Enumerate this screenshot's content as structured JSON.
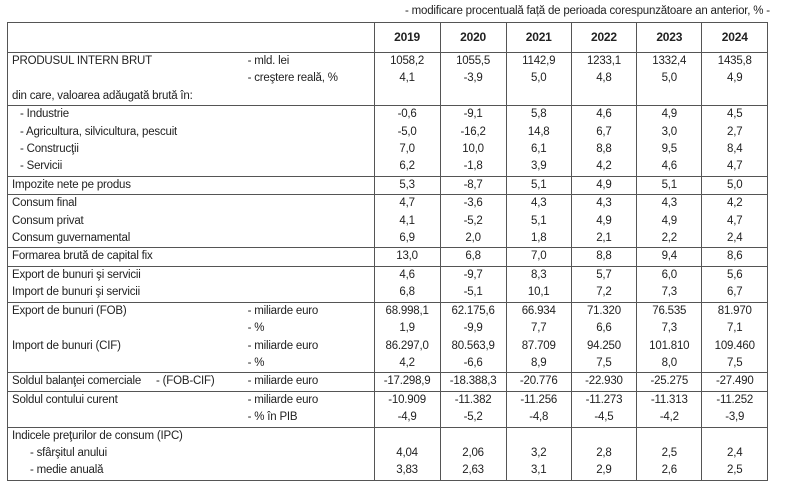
{
  "caption": "- modificare procentuală față de perioada corespunzătoare an anterior, % -",
  "years": [
    "2019",
    "2020",
    "2021",
    "2022",
    "2023",
    "2024"
  ],
  "rows": [
    {
      "label": "PRODUSUL INTERN BRUT",
      "unit": "- mld. lei",
      "values": [
        "1058,2",
        "1055,5",
        "1142,9",
        "1233,1",
        "1332,4",
        "1435,8"
      ],
      "top": true
    },
    {
      "label": "",
      "unit": "- creştere reală, %",
      "values": [
        "4,1",
        "-3,9",
        "5,0",
        "4,8",
        "5,0",
        "4,9"
      ]
    },
    {
      "label": "din care, valoarea adăugată brută în:",
      "unit": "",
      "values": [
        "",
        "",
        "",
        "",
        "",
        ""
      ]
    },
    {
      "label": "- Industrie",
      "unit": "",
      "values": [
        "-0,6",
        "-9,1",
        "5,8",
        "4,6",
        "4,9",
        "4,5"
      ],
      "top": true,
      "indent": 1
    },
    {
      "label": "- Agricultura, silvicultura, pescuit",
      "unit": "",
      "values": [
        "-5,0",
        "-16,2",
        "14,8",
        "6,7",
        "3,0",
        "2,7"
      ],
      "indent": 1
    },
    {
      "label": "- Construcţii",
      "unit": "",
      "values": [
        "7,0",
        "10,0",
        "6,1",
        "8,8",
        "9,5",
        "8,4"
      ],
      "indent": 1
    },
    {
      "label": "- Servicii",
      "unit": "",
      "values": [
        "6,2",
        "-1,8",
        "3,9",
        "4,2",
        "4,6",
        "4,7"
      ],
      "indent": 1
    },
    {
      "label": "Impozite nete pe produs",
      "unit": "",
      "values": [
        "5,3",
        "-8,7",
        "5,1",
        "4,9",
        "5,1",
        "5,0"
      ],
      "top": true
    },
    {
      "label": "Consum final",
      "unit": "",
      "values": [
        "4,7",
        "-3,6",
        "4,3",
        "4,3",
        "4,3",
        "4,2"
      ],
      "top": true
    },
    {
      "label": "Consum privat",
      "unit": "",
      "values": [
        "4,1",
        "-5,2",
        "5,1",
        "4,9",
        "4,9",
        "4,7"
      ]
    },
    {
      "label": "Consum guvernamental",
      "unit": "",
      "values": [
        "6,9",
        "2,0",
        "1,8",
        "2,1",
        "2,2",
        "2,4"
      ]
    },
    {
      "label": "Formarea brută de capital fix",
      "unit": "",
      "values": [
        "13,0",
        "6,8",
        "7,0",
        "8,8",
        "9,4",
        "8,6"
      ],
      "top": true
    },
    {
      "label": "Export de bunuri şi servicii",
      "unit": "",
      "values": [
        "4,6",
        "-9,7",
        "8,3",
        "5,7",
        "6,0",
        "5,6"
      ],
      "top": true
    },
    {
      "label": "Import de bunuri şi servicii",
      "unit": "",
      "values": [
        "6,8",
        "-5,1",
        "10,1",
        "7,2",
        "7,3",
        "6,7"
      ]
    },
    {
      "label": "Export de bunuri (FOB)",
      "unit": "- miliarde euro",
      "values": [
        "68.998,1",
        "62.175,6",
        "66.934",
        "71.320",
        "76.535",
        "81.970"
      ],
      "top": true
    },
    {
      "label": "",
      "unit": "- %",
      "values": [
        "1,9",
        "-9,9",
        "7,7",
        "6,6",
        "7,3",
        "7,1"
      ]
    },
    {
      "label": "Import de bunuri (CIF)",
      "unit": "- miliarde euro",
      "values": [
        "86.297,0",
        "80.563,9",
        "87.709",
        "94.250",
        "101.810",
        "109.460"
      ]
    },
    {
      "label": "",
      "unit": "- %",
      "values": [
        "4,2",
        "-6,6",
        "8,9",
        "7,5",
        "8,0",
        "7,5"
      ]
    },
    {
      "label": "Soldul balanţei comerciale     - (FOB-CIF)",
      "unit": "- miliarde euro",
      "values": [
        "-17.298,9",
        "-18.388,3",
        "-20.776",
        "-22.930",
        "-25.275",
        "-27.490"
      ],
      "top": true
    },
    {
      "label": "Soldul contului curent",
      "unit": "- miliarde euro",
      "values": [
        "-10.909",
        "-11.382",
        "-11.256",
        "-11.273",
        "-11.313",
        "-11.252"
      ],
      "top": true
    },
    {
      "label": "",
      "unit": "-  % în PIB",
      "values": [
        "-4,9",
        "-5,2",
        "-4,8",
        "-4,5",
        "-4,2",
        "-3,9"
      ]
    },
    {
      "label": "Indicele preţurilor de consum (IPC)",
      "unit": "",
      "values": [
        "",
        "",
        "",
        "",
        "",
        ""
      ],
      "top": true
    },
    {
      "label": "- sfârşitul anului",
      "unit": "",
      "values": [
        "4,04",
        "2,06",
        "3,2",
        "2,8",
        "2,5",
        "2,4"
      ],
      "indent": 2
    },
    {
      "label": "- medie anuală",
      "unit": "",
      "values": [
        "3,83",
        "2,63",
        "3,1",
        "2,9",
        "2,6",
        "2,5"
      ],
      "indent": 2
    }
  ]
}
